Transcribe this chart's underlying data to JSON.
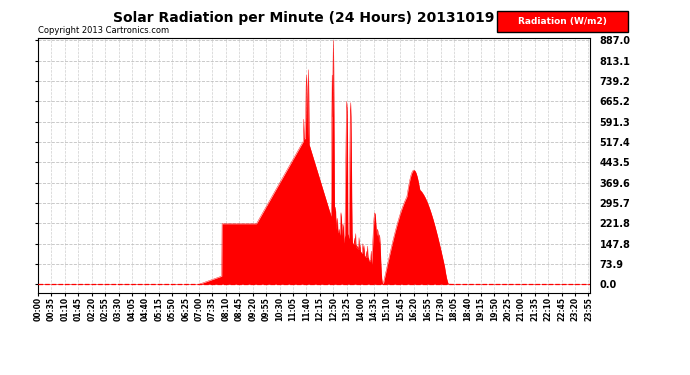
{
  "title": "Solar Radiation per Minute (24 Hours) 20131019",
  "copyright_text": "Copyright 2013 Cartronics.com",
  "legend_label": "Radiation (W/m2)",
  "background_color": "#ffffff",
  "plot_bg_color": "#ffffff",
  "grid_color": "#bbbbbb",
  "fill_color": "#ff0000",
  "line_color": "#ff0000",
  "dashed_line_color": "#ff0000",
  "ytick_labels": [
    "0.0",
    "73.9",
    "147.8",
    "221.8",
    "295.7",
    "369.6",
    "443.5",
    "517.4",
    "591.3",
    "665.2",
    "739.2",
    "813.1",
    "887.0"
  ],
  "ytick_values": [
    0.0,
    73.9,
    147.8,
    221.8,
    295.7,
    369.6,
    443.5,
    517.4,
    591.3,
    665.2,
    739.2,
    813.1,
    887.0
  ],
  "ymax": 887.0,
  "ymin": 0.0,
  "total_minutes": 1440,
  "xtick_labels": [
    "00:00",
    "00:35",
    "01:10",
    "01:45",
    "02:20",
    "02:55",
    "03:30",
    "04:05",
    "04:40",
    "05:15",
    "05:50",
    "06:25",
    "07:00",
    "07:35",
    "08:10",
    "08:45",
    "09:20",
    "09:55",
    "10:30",
    "11:05",
    "11:40",
    "12:15",
    "12:50",
    "13:25",
    "14:00",
    "14:35",
    "15:10",
    "15:45",
    "16:20",
    "16:55",
    "17:30",
    "18:05",
    "18:40",
    "19:15",
    "19:50",
    "20:25",
    "21:00",
    "21:35",
    "22:10",
    "22:45",
    "23:20",
    "23:55"
  ]
}
